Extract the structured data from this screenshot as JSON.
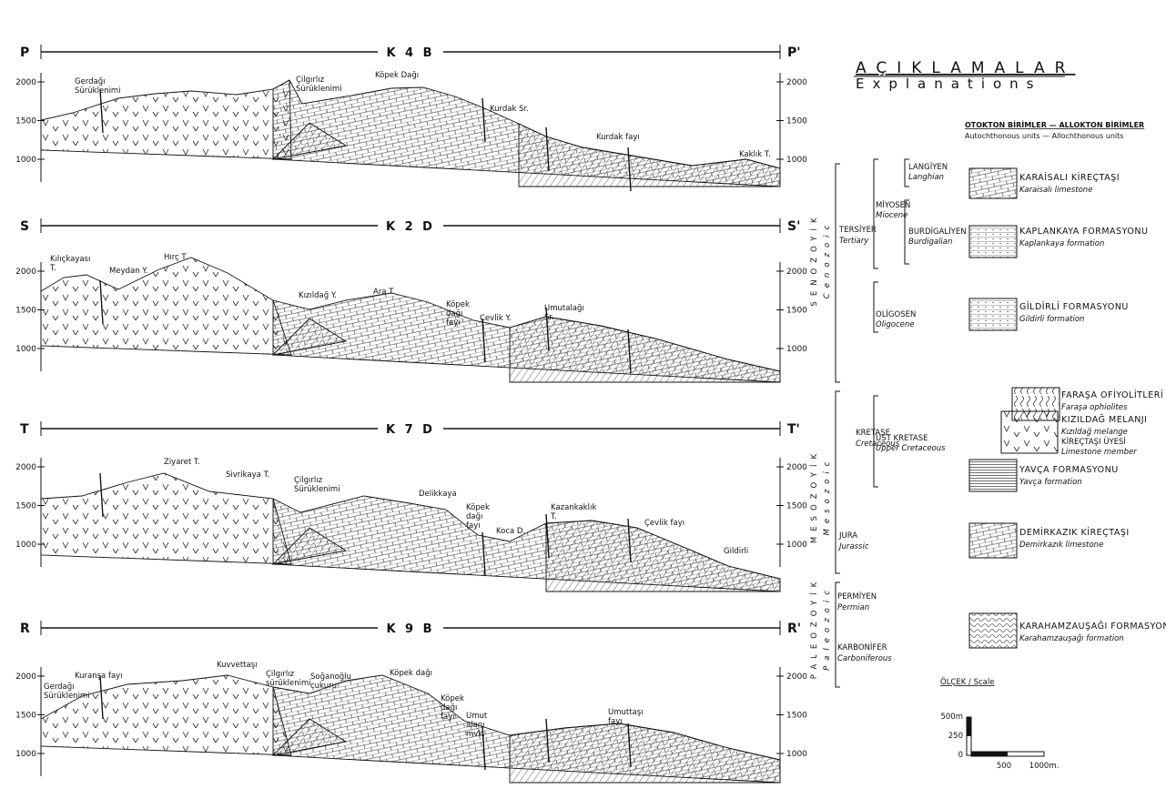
{
  "sections": [
    {
      "start": "P",
      "end": "P'",
      "title": "K 4 B",
      "elevations": [
        2000,
        1500,
        1000
      ],
      "places": [
        "Gerdağı Sürüklenimi",
        "Çilgırlız Sürüklenimi",
        "Köpek Dağı",
        "Kurdak Sr.",
        "Kurdak fayı",
        "Kaklık T."
      ]
    },
    {
      "start": "S",
      "end": "S'",
      "title": "K 2 D",
      "elevations": [
        2000,
        1500,
        1000
      ],
      "places": [
        "Kılıçkayası T.",
        "Meydan Y.",
        "Hırç T.",
        "Kızıldağ Y.",
        "Ara T.",
        "Köpek dağı fayı",
        "Çevlik Y.",
        "Umutalağı Sr."
      ]
    },
    {
      "start": "T",
      "end": "T'",
      "title": "K 7 D",
      "elevations": [
        2000,
        1500,
        1000
      ],
      "places": [
        "Ziyaret T.",
        "Sivrikaya T.",
        "Çilgırlız Sürüklenimi",
        "Delikkaya",
        "Köpek dağı fayı",
        "Koca D.",
        "Kazankaklık T.",
        "Çevlik fayı",
        "Gildirli"
      ]
    },
    {
      "start": "R",
      "end": "R'",
      "title": "K 9 B",
      "elevations": [
        2000,
        1500,
        1000
      ],
      "places": [
        "Gerdağı Sürüklenimi",
        "Kuranşa fayı",
        "Kuvvettaşı",
        "Çilgırlız sürüklenimi",
        "Soğanoğlu çukuru",
        "Köpek dağı",
        "Köpek dağı fayı",
        "Umut alanı mvk.",
        "Umuttaşı fayı"
      ]
    }
  ],
  "legend": {
    "title": "AÇIKLAMALAR",
    "subtitle": "Explanations",
    "header": "OTOKTON BİRİMLER — ALLOKTON BİRİMLER",
    "header_en": "Autochthonous units — Allochthonous units",
    "eras": [
      {
        "name": "SENOZOYİK",
        "en": "Cenozoic"
      },
      {
        "name": "MESOZOYİK",
        "en": "Mesozoic"
      },
      {
        "name": "PALEOZOYİK",
        "en": "Paleozoic"
      }
    ],
    "periods": [
      {
        "name": "TERSİYER",
        "en": "Tertiary"
      },
      {
        "name": "KRETASE",
        "en": "Cretaceous"
      },
      {
        "name": "JURA",
        "en": "Jurassic"
      },
      {
        "name": "PERMİYEN",
        "en": "Permian"
      },
      {
        "name": "KARBONİFER",
        "en": "Carboniferous"
      }
    ],
    "epochs": [
      {
        "name": "MİYOSEN",
        "en": "Miocene"
      },
      {
        "name": "OLİGOSEN",
        "en": "Oligocene"
      },
      {
        "name": "ÜST KRETASE",
        "en": "Upper Cretaceous"
      }
    ],
    "stages": [
      {
        "name": "LANGİYEN",
        "en": "Langhian"
      },
      {
        "name": "BURDİGALİYEN",
        "en": "Burdigalian"
      }
    ],
    "units": [
      {
        "name": "KARAİSALI KİREÇTAŞI",
        "en": "Karaisalı limestone"
      },
      {
        "name": "KAPLANKAYA FORMASYONU",
        "en": "Kaplankaya formation"
      },
      {
        "name": "GİLDİRLİ FORMASYONU",
        "en": "Gildirli formation"
      },
      {
        "name": "FARAŞA OFİYOLİTLERİ",
        "en": "Faraşa ophiolites"
      },
      {
        "name": "KIZILDAĞ MELANJI",
        "en": "Kızıldağ melange",
        "member": "KİREÇTAŞI ÜYESİ",
        "member_en": "Limestone member"
      },
      {
        "name": "YAVÇA FORMASYONU",
        "en": "Yavça formation"
      },
      {
        "name": "DEMİRKAZIK KİREÇTAŞI",
        "en": "Demirkazık limestone"
      },
      {
        "name": "KARAHAMZAUŞAĞI FORMASYONU",
        "en": "Karahamzauşağı formation"
      }
    ],
    "scale": {
      "title": "ÖLÇEK / Scale",
      "vertical": [
        "500m",
        "250",
        "0"
      ],
      "horizontal": [
        "500",
        "1000m."
      ]
    }
  }
}
